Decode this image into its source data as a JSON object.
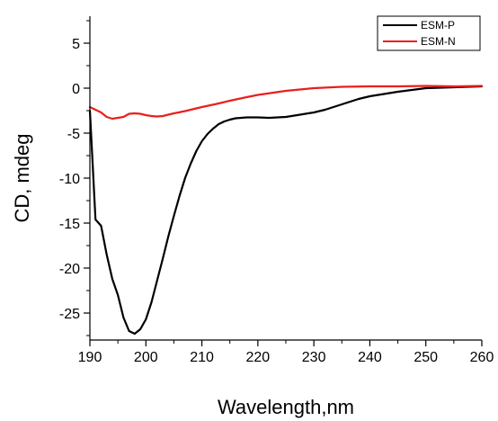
{
  "chart_data": {
    "type": "line",
    "title": "",
    "xlabel": "Wavelength,nm",
    "ylabel": "CD, mdeg",
    "xlim": [
      190,
      260
    ],
    "ylim": [
      -28,
      8
    ],
    "xticks": [
      190,
      200,
      210,
      220,
      230,
      240,
      250,
      260
    ],
    "yticks": [
      5,
      0,
      -5,
      -10,
      -15,
      -20,
      -25
    ],
    "grid": false,
    "legend_position": "top-right",
    "series": [
      {
        "name": "ESM-P",
        "color": "#000000",
        "x": [
          190,
          190.5,
          191,
          192,
          193,
          194,
          195,
          196,
          197,
          198,
          199,
          200,
          201,
          202,
          203,
          204,
          205,
          206,
          207,
          208,
          209,
          210,
          211,
          212,
          213,
          214,
          215,
          216,
          217,
          218,
          220,
          222,
          225,
          228,
          230,
          232,
          235,
          238,
          240,
          245,
          250,
          255,
          260
        ],
        "y": [
          -2.5,
          -8.5,
          -14.6,
          -15.3,
          -18.5,
          -21.2,
          -23,
          -25.5,
          -27,
          -27.3,
          -26.8,
          -25.7,
          -23.8,
          -21.4,
          -19,
          -16.5,
          -14.2,
          -12,
          -10,
          -8.4,
          -7,
          -5.9,
          -5.1,
          -4.5,
          -4,
          -3.7,
          -3.5,
          -3.35,
          -3.3,
          -3.25,
          -3.25,
          -3.3,
          -3.2,
          -2.9,
          -2.7,
          -2.4,
          -1.8,
          -1.2,
          -0.9,
          -0.4,
          0,
          0.1,
          0.2
        ]
      },
      {
        "name": "ESM-N",
        "color": "#e8201e",
        "x": [
          190,
          191,
          192,
          193,
          194,
          195,
          196,
          197,
          198,
          199,
          200,
          201,
          202,
          203,
          204,
          205,
          207,
          210,
          213,
          215,
          218,
          220,
          225,
          230,
          235,
          240,
          245,
          250,
          255,
          260
        ],
        "y": [
          -2.1,
          -2.4,
          -2.7,
          -3.2,
          -3.4,
          -3.3,
          -3.2,
          -2.85,
          -2.8,
          -2.85,
          -3,
          -3.1,
          -3.15,
          -3.1,
          -2.95,
          -2.8,
          -2.55,
          -2.1,
          -1.7,
          -1.4,
          -1,
          -0.75,
          -0.3,
          0,
          0.15,
          0.2,
          0.2,
          0.25,
          0.2,
          0.25
        ]
      }
    ]
  }
}
